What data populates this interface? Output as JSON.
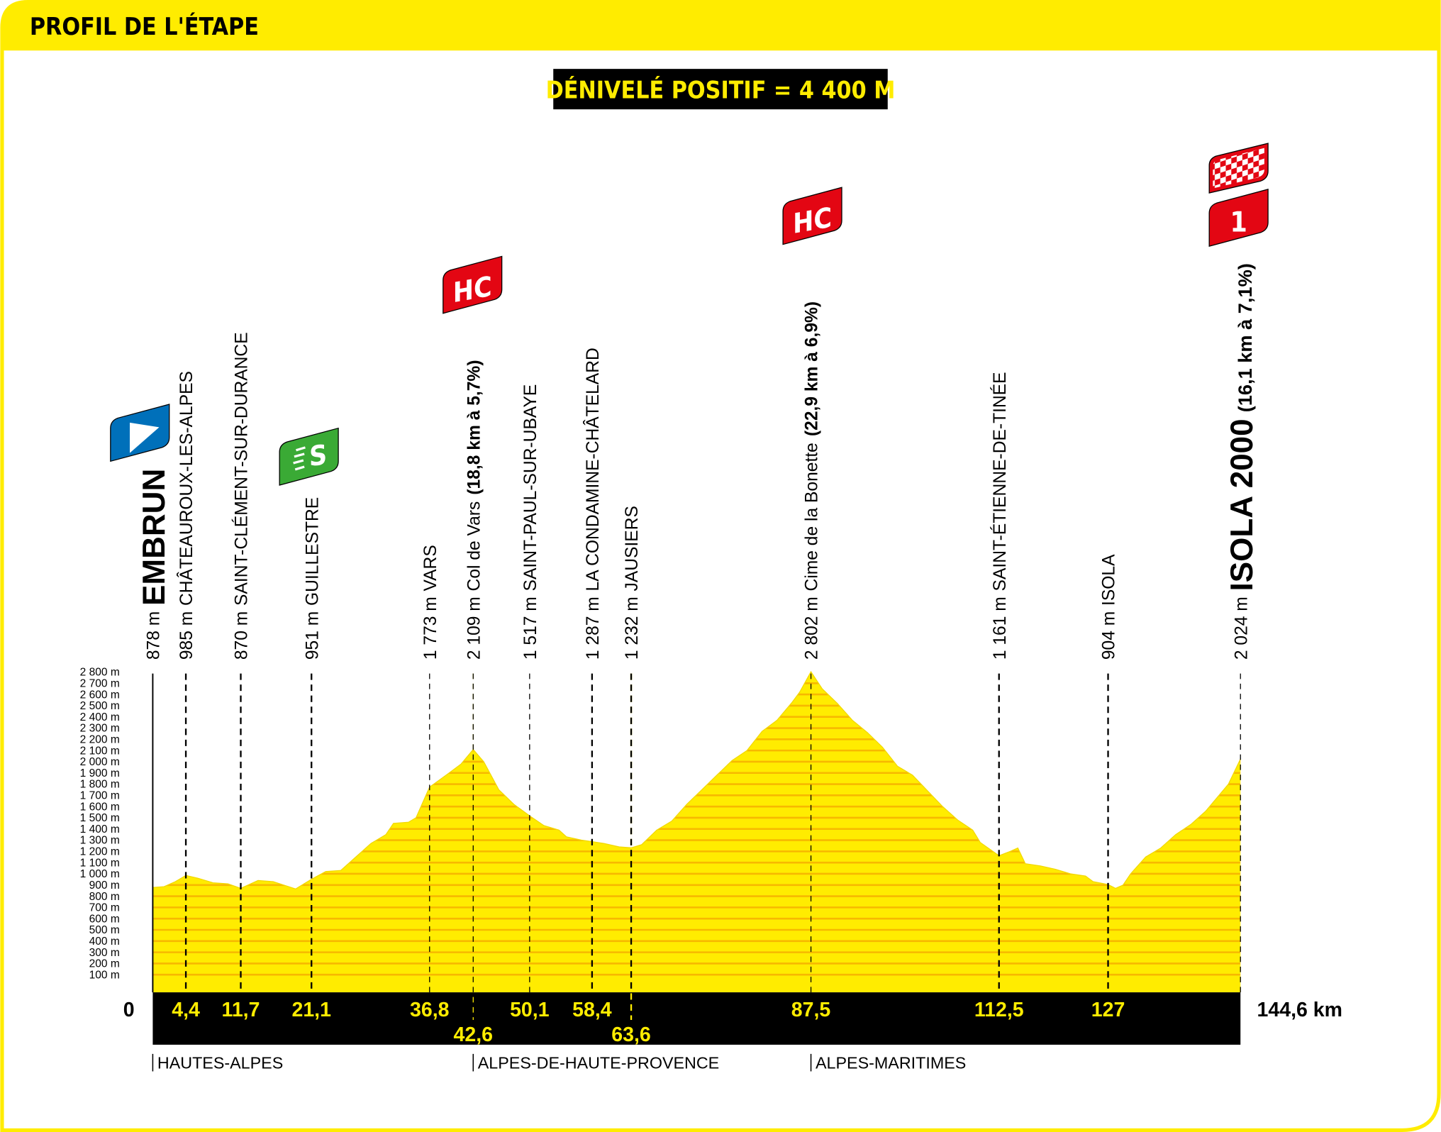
{
  "header": {
    "title": "PROFIL DE L'ÉTAPE"
  },
  "elevation_gain": "DÉNIVELÉ POSITIF = 4 400 M",
  "colors": {
    "brand_yellow": "#ffec00",
    "profile_fill": "#ffec00",
    "stripe": "#f7b800",
    "climb_red": "#e30613",
    "start_blue": "#0070ba",
    "sprint_green": "#3aaa35"
  },
  "badges": {
    "start": "start-flag-icon",
    "sprint": "S",
    "climb_1": "HC",
    "climb_2": "HC",
    "finish": "checkered-flag-icon",
    "finish_climb": "1"
  },
  "chart_data": {
    "type": "area",
    "title": "",
    "xlabel": "",
    "ylabel": "",
    "xlim": [
      0,
      144.6
    ],
    "ylim": [
      0,
      2800
    ],
    "y_ticks": [
      "100 m",
      "200 m",
      "300 m",
      "400 m",
      "500 m",
      "600 m",
      "700 m",
      "800 m",
      "900 m",
      "1 000 m",
      "1 100 m",
      "1 200 m",
      "1 300 m",
      "1 400 m",
      "1 500 m",
      "1 600 m",
      "1 700 m",
      "1 800 m",
      "1 900 m",
      "2 000 m",
      "2 100 m",
      "2 200 m",
      "2 300 m",
      "2 400 m",
      "2 500 m",
      "2 600 m",
      "2 700 m",
      "2 800 m"
    ],
    "start_label": "0",
    "end_label": "144,6 km",
    "profile": {
      "km": [
        0,
        1.5,
        3,
        4.4,
        6,
        8,
        10,
        11.7,
        14,
        16,
        19,
        21.1,
        23,
        25,
        27,
        29,
        31,
        32,
        34,
        35,
        36.8,
        39,
        41,
        42.6,
        44,
        46,
        48,
        50.1,
        52,
        54,
        55,
        57,
        58.4,
        60,
        62,
        63.6,
        65,
        67,
        69,
        71,
        73,
        75,
        77,
        79,
        81,
        83,
        85,
        86,
        87.5,
        89,
        91,
        93,
        95,
        97,
        99,
        101,
        103,
        105,
        107,
        109,
        110,
        112.5,
        114,
        115,
        116,
        118,
        120,
        122,
        124,
        125,
        127,
        128,
        129,
        130,
        132,
        134,
        136,
        138,
        140,
        142,
        143,
        144.6
      ],
      "elev": [
        878,
        885,
        930,
        985,
        960,
        920,
        910,
        870,
        940,
        930,
        865,
        951,
        1020,
        1030,
        1150,
        1270,
        1350,
        1450,
        1460,
        1500,
        1773,
        1880,
        1980,
        2109,
        2000,
        1750,
        1620,
        1517,
        1430,
        1390,
        1330,
        1300,
        1287,
        1270,
        1240,
        1232,
        1260,
        1390,
        1470,
        1620,
        1750,
        1880,
        2010,
        2100,
        2270,
        2370,
        2530,
        2620,
        2802,
        2650,
        2520,
        2370,
        2260,
        2130,
        1960,
        1880,
        1740,
        1600,
        1480,
        1390,
        1280,
        1161,
        1200,
        1230,
        1090,
        1070,
        1040,
        1000,
        980,
        930,
        904,
        870,
        900,
        1000,
        1150,
        1230,
        1350,
        1440,
        1560,
        1720,
        1800,
        2024
      ]
    },
    "waypoints": [
      {
        "km": 0,
        "km_label": "",
        "elev_label": "878 m",
        "name": "EMBRUN",
        "detail": "",
        "style": "start"
      },
      {
        "km": 4.4,
        "km_label": "4,4",
        "elev_label": "985 m",
        "name": "CHÂTEAUROUX-LES-ALPES",
        "detail": "",
        "style": "town"
      },
      {
        "km": 11.7,
        "km_label": "11,7",
        "elev_label": "870 m",
        "name": "SAINT-CLÉMENT-SUR-DURANCE",
        "detail": "",
        "style": "town"
      },
      {
        "km": 21.1,
        "km_label": "21,1",
        "elev_label": "951 m",
        "name": "GUILLESTRE",
        "detail": "",
        "style": "town"
      },
      {
        "km": 36.8,
        "km_label": "36,8",
        "elev_label": "1 773 m",
        "name": "VARS",
        "detail": "",
        "style": "thin"
      },
      {
        "km": 42.6,
        "km_label": "42,6",
        "elev_label": "2 109 m",
        "name": "Col de Vars",
        "detail": "(18,8 km à 5,7%)",
        "style": "climb",
        "low": true
      },
      {
        "km": 50.1,
        "km_label": "50,1",
        "elev_label": "1 517 m",
        "name": "SAINT-PAUL-SUR-UBAYE",
        "detail": "",
        "style": "thin"
      },
      {
        "km": 58.4,
        "km_label": "58,4",
        "elev_label": "1 287 m",
        "name": "LA CONDAMINE-CHÂTELARD",
        "detail": "",
        "style": "town"
      },
      {
        "km": 63.6,
        "km_label": "63,6",
        "elev_label": "1 232 m",
        "name": "JAUSIERS",
        "detail": "",
        "style": "town",
        "low": true
      },
      {
        "km": 87.5,
        "km_label": "87,5",
        "elev_label": "2 802 m",
        "name": "Cime de la Bonette",
        "detail": "(22,9 km à 6,9%)",
        "style": "climb"
      },
      {
        "km": 112.5,
        "km_label": "112,5",
        "elev_label": "1 161 m",
        "name": "SAINT-ÉTIENNE-DE-TINÉE",
        "detail": "",
        "style": "town"
      },
      {
        "km": 127,
        "km_label": "127",
        "elev_label": "904 m",
        "name": "ISOLA",
        "detail": "",
        "style": "town"
      },
      {
        "km": 144.6,
        "km_label": "",
        "elev_label": "2 024 m",
        "name": "ISOLA 2000",
        "detail": "(16,1 km à 7,1%)",
        "style": "finish"
      }
    ],
    "departments": [
      {
        "km": 0,
        "label": "HAUTES-ALPES"
      },
      {
        "km": 42.6,
        "label": "ALPES-DE-HAUTE-PROVENCE"
      },
      {
        "km": 87.5,
        "label": "ALPES-MARITIMES"
      }
    ],
    "grid": false,
    "legend": "none"
  }
}
